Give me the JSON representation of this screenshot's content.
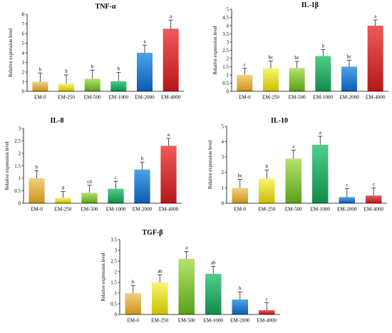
{
  "chart_data": [
    {
      "type": "bar",
      "title": "TNF-α",
      "ylabel": "Relative expression level",
      "categories": [
        "EM-0",
        "EM-250",
        "EM-500",
        "EM-1000",
        "EM-2000",
        "EM-4000"
      ],
      "values": [
        1.0,
        0.8,
        1.3,
        1.05,
        4.0,
        6.5
      ],
      "errors": [
        0.9,
        0.9,
        0.9,
        0.9,
        0.8,
        0.9
      ],
      "labels": [
        "b",
        "b",
        "b",
        "b",
        "a",
        "a"
      ],
      "ylim": [
        0,
        8
      ],
      "yticks": [
        0,
        1,
        2,
        3,
        4,
        5,
        6,
        7,
        8
      ],
      "tick_labels": [
        "0",
        "1",
        "2",
        "3",
        "4",
        "5",
        "6",
        "7",
        "8"
      ]
    },
    {
      "type": "bar",
      "title": "IL-1β",
      "ylabel": "Relative expression level",
      "categories": [
        "EM-0",
        "EM-250",
        "EM-500",
        "EM-1000",
        "EM-2000",
        "EM-4000"
      ],
      "values": [
        1.0,
        1.4,
        1.42,
        2.15,
        1.5,
        4.0
      ],
      "errors": [
        0.4,
        0.45,
        0.4,
        0.4,
        0.4,
        0.35
      ],
      "labels": [
        "c",
        "bc",
        "bc",
        "b",
        "bc",
        "a"
      ],
      "ylim": [
        0,
        5
      ],
      "yticks": [
        0,
        0.5,
        1,
        1.5,
        2,
        2.5,
        3,
        3.5,
        4,
        4.5,
        5
      ],
      "tick_labels": [
        "0",
        "0.5",
        "1",
        "1.5",
        "2",
        "2.5",
        "3",
        "3.5",
        "4",
        "4.5",
        "5"
      ]
    },
    {
      "type": "bar",
      "title": "IL-8",
      "ylabel": "Relative expression level",
      "categories": [
        "EM-0",
        "EM-250",
        "EM-500",
        "EM-1000",
        "EM-2000",
        "EM-4000"
      ],
      "values": [
        1.0,
        0.22,
        0.42,
        0.58,
        1.35,
        2.3
      ],
      "errors": [
        0.3,
        0.25,
        0.3,
        0.3,
        0.3,
        0.3
      ],
      "labels": [
        "b",
        "d",
        "cd",
        "c",
        "b",
        "a"
      ],
      "ylim": [
        0,
        3
      ],
      "yticks": [
        0,
        0.5,
        1,
        1.5,
        2,
        2.5,
        3
      ],
      "tick_labels": [
        "0",
        "0.5",
        "1",
        "1.5",
        "2",
        "2.5",
        "3"
      ]
    },
    {
      "type": "bar",
      "title": "IL-10",
      "ylabel": "Relative expression level",
      "categories": [
        "EM-0",
        "EM-250",
        "EM-500",
        "EM-1000",
        "EM-2000",
        "EM-4000"
      ],
      "values": [
        1.0,
        1.6,
        2.9,
        3.8,
        0.4,
        0.5
      ],
      "errors": [
        0.55,
        0.55,
        0.55,
        0.55,
        0.55,
        0.5
      ],
      "labels": [
        "bc",
        "b",
        "a",
        "a",
        "c",
        "c"
      ],
      "ylim": [
        0,
        5
      ],
      "yticks": [
        0,
        1,
        2,
        3,
        4,
        5
      ],
      "tick_labels": [
        "0",
        "1",
        "2",
        "3",
        "4",
        "5"
      ]
    },
    {
      "type": "bar",
      "title": "TGF-β",
      "ylabel": "Relative expression level",
      "categories": [
        "EM-0",
        "EM-250",
        "EM-500",
        "EM-1000",
        "EM-2000",
        "EM-4000"
      ],
      "values": [
        1.0,
        1.5,
        2.6,
        1.9,
        0.7,
        0.2
      ],
      "errors": [
        0.35,
        0.35,
        0.35,
        0.35,
        0.35,
        0.35
      ],
      "labels": [
        "b",
        "ab",
        "a",
        "ab",
        "b",
        "c"
      ],
      "ylim": [
        0,
        3.5
      ],
      "yticks": [
        0,
        0.5,
        1,
        1.5,
        2,
        2.5,
        3,
        3.5
      ],
      "tick_labels": [
        "0",
        "0.5",
        "1",
        "1.5",
        "2",
        "2.5",
        "3",
        "3.5"
      ]
    }
  ],
  "bar_colors": [
    [
      "#f5d27a",
      "#c8921e"
    ],
    [
      "#f9f56a",
      "#c8bf06"
    ],
    [
      "#b3e56a",
      "#5a9e1c"
    ],
    [
      "#4fcf8a",
      "#138a4a"
    ],
    [
      "#4aa3e8",
      "#0f5ab4"
    ],
    [
      "#f05a5a",
      "#b41818"
    ]
  ]
}
